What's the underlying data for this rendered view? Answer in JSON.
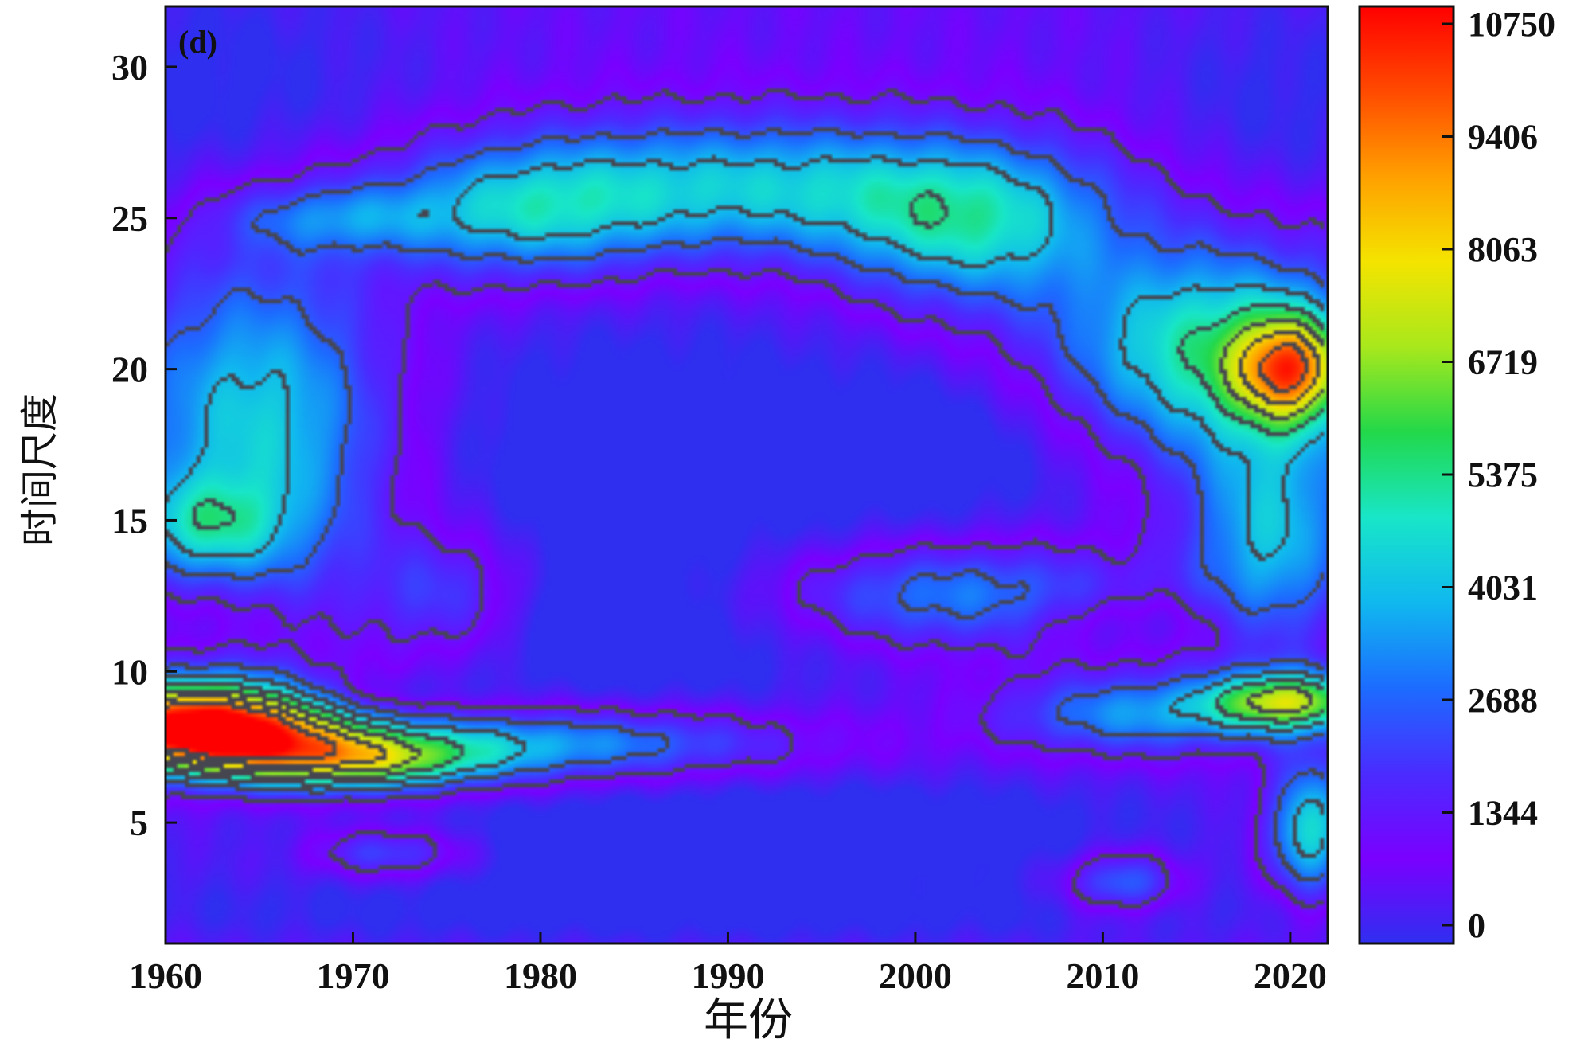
{
  "chart_data": {
    "type": "heatmap",
    "panel_label": "(d)",
    "xlabel": "年份",
    "ylabel": "时间尺度",
    "xlim": [
      1960,
      2022
    ],
    "ylim": [
      1,
      32
    ],
    "x_ticks": [
      1960,
      1970,
      1980,
      1990,
      2000,
      2010,
      2020
    ],
    "y_ticks": [
      5,
      10,
      15,
      20,
      25,
      30
    ],
    "colorbar": {
      "min": 0,
      "max": 10750,
      "ticks": [
        0,
        1344,
        2688,
        4031,
        5375,
        6719,
        8063,
        9406,
        10750
      ],
      "colors": [
        "#2f2ff0",
        "#7a00ff",
        "#4a2cff",
        "#1c6cff",
        "#10b8ef",
        "#18e6c8",
        "#22d84a",
        "#a8e81c",
        "#f4e400",
        "#ffa000",
        "#ff4a00",
        "#ff0000"
      ]
    },
    "features": [
      {
        "x": 1962,
        "y": 8,
        "sx": 5,
        "sy": 0.9,
        "value": 10500
      },
      {
        "x": 1970,
        "y": 7,
        "sx": 5,
        "sy": 0.7,
        "value": 5000
      },
      {
        "x": 1980,
        "y": 7.6,
        "sx": 9,
        "sy": 0.8,
        "value": 3000
      },
      {
        "x": 2012,
        "y": 8.6,
        "sx": 5,
        "sy": 0.9,
        "value": 2800
      },
      {
        "x": 2020,
        "y": 9,
        "sx": 3,
        "sy": 0.7,
        "value": 5800
      },
      {
        "x": 2021,
        "y": 4.8,
        "sx": 1.5,
        "sy": 1.5,
        "value": 4200
      },
      {
        "x": 1965,
        "y": 18,
        "sx": 5,
        "sy": 4,
        "value": 3900
      },
      {
        "x": 1991,
        "y": 26,
        "sx": 11,
        "sy": 1.6,
        "value": 3600
      },
      {
        "x": 1979,
        "y": 25,
        "sx": 5,
        "sy": 1.5,
        "value": 2500
      },
      {
        "x": 2003,
        "y": 24.5,
        "sx": 5,
        "sy": 1.8,
        "value": 3100
      },
      {
        "x": 2016,
        "y": 20.5,
        "sx": 6,
        "sy": 2.5,
        "value": 4700
      },
      {
        "x": 2020,
        "y": 20,
        "sx": 2,
        "sy": 1.2,
        "value": 5800
      },
      {
        "x": 2019,
        "y": 14.5,
        "sx": 3,
        "sy": 2.5,
        "value": 3300
      },
      {
        "x": 2002,
        "y": 12.5,
        "sx": 7,
        "sy": 1.2,
        "value": 2700
      },
      {
        "x": 1962,
        "y": 9.2,
        "sx": 4,
        "sy": 0.8,
        "value": 2200
      },
      {
        "x": 1962,
        "y": 14.8,
        "sx": 3,
        "sy": 1.1,
        "value": 2400
      },
      {
        "x": 1975,
        "y": 12.5,
        "sx": 3,
        "sy": 1.5,
        "value": 1900
      },
      {
        "x": 1972,
        "y": 4,
        "sx": 3,
        "sy": 0.6,
        "value": 2200
      },
      {
        "x": 2011,
        "y": 3,
        "sx": 2,
        "sy": 0.7,
        "value": 2500
      },
      {
        "x": 1969,
        "y": 25,
        "sx": 4,
        "sy": 0.8,
        "value": 1900
      },
      {
        "x": 1985,
        "y": 17,
        "sx": 11,
        "sy": 4,
        "value": -1100
      },
      {
        "x": 2004,
        "y": 17.5,
        "sx": 7,
        "sy": 2,
        "value": -900
      },
      {
        "x": 1985,
        "y": 11,
        "sx": 9,
        "sy": 1.8,
        "value": -900
      },
      {
        "x": 1985,
        "y": 4.3,
        "sx": 15,
        "sy": 1.4,
        "value": -1000
      },
      {
        "x": 2011,
        "y": 11.7,
        "sx": 4,
        "sy": 0.7,
        "value": -900
      },
      {
        "x": 1962,
        "y": 29,
        "sx": 8,
        "sy": 3,
        "value": -900
      },
      {
        "x": 2019,
        "y": 28.5,
        "sx": 5,
        "sy": 3,
        "value": -700
      },
      {
        "x": 1962,
        "y": 11.8,
        "sx": 3,
        "sy": 0.9,
        "value": -800
      },
      {
        "x": 1972,
        "y": 9.2,
        "sx": 3,
        "sy": 0.5,
        "value": -800
      },
      {
        "x": 2001,
        "y": 5,
        "sx": 12,
        "sy": 1.2,
        "value": -600
      },
      {
        "x": 1990,
        "y": 2,
        "sx": 30,
        "sy": 0.8,
        "value": -700
      }
    ]
  }
}
